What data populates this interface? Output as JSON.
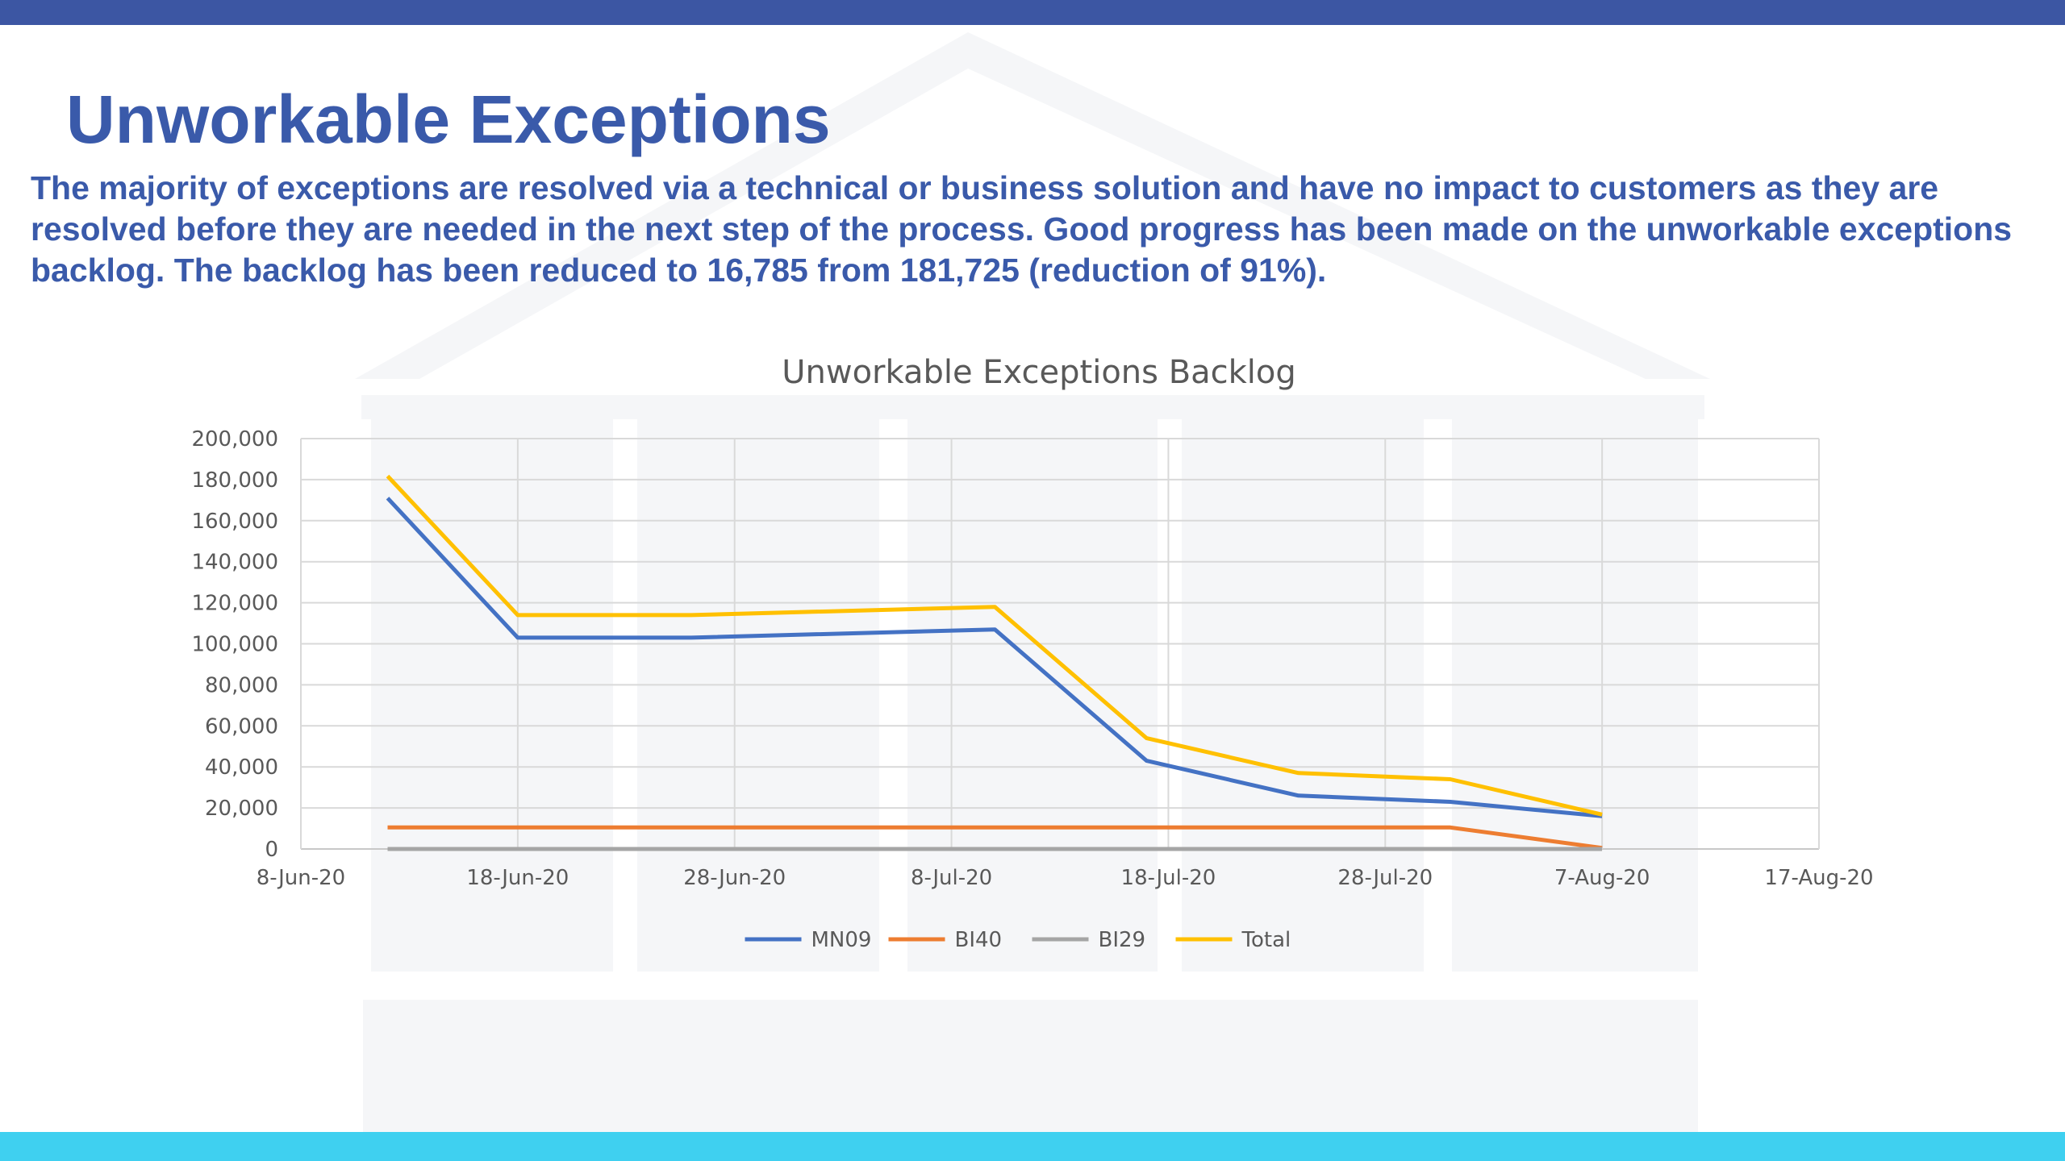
{
  "slide": {
    "title": "Unworkable Exceptions",
    "summary": "The majority of exceptions are resolved via a technical or business solution and have no impact to customers as they are resolved before they are needed in the next step of the process. Good progress has been made on the unworkable exceptions backlog. The backlog has been reduced to 16,785 from 181,725 (reduction of 91%).",
    "colors": {
      "title": "#3a5aaa",
      "top_bar": "#3c56a3",
      "bottom_bar": "#3fd0f0"
    }
  },
  "chart_data": {
    "type": "line",
    "title": "Unworkable Exceptions Backlog",
    "xlabel": "",
    "ylabel": "",
    "x_tick_labels": [
      "8-Jun-20",
      "18-Jun-20",
      "28-Jun-20",
      "8-Jul-20",
      "18-Jul-20",
      "28-Jul-20",
      "7-Aug-20",
      "17-Aug-20"
    ],
    "y_tick_labels": [
      "0",
      "20,000",
      "40,000",
      "60,000",
      "80,000",
      "100,000",
      "120,000",
      "140,000",
      "160,000",
      "180,000",
      "200,000"
    ],
    "xlim": [
      "2020-06-08",
      "2020-08-17"
    ],
    "ylim": [
      0,
      200000
    ],
    "x": [
      "2020-06-12",
      "2020-06-18",
      "2020-06-26",
      "2020-07-10",
      "2020-07-17",
      "2020-07-24",
      "2020-07-31",
      "2020-08-07"
    ],
    "series": [
      {
        "name": "MN09",
        "color": "#4472c4",
        "values": [
          171000,
          103000,
          103000,
          107000,
          43000,
          26000,
          23000,
          16000
        ]
      },
      {
        "name": "BI40",
        "color": "#ed7d31",
        "values": [
          10500,
          10500,
          10500,
          10500,
          10500,
          10500,
          10500,
          500
        ]
      },
      {
        "name": "BI29",
        "color": "#a5a5a5",
        "values": [
          0,
          0,
          0,
          0,
          0,
          0,
          0,
          0
        ]
      },
      {
        "name": "Total",
        "color": "#ffc000",
        "values": [
          181725,
          114000,
          114000,
          118000,
          54000,
          37000,
          34000,
          16785
        ]
      }
    ],
    "grid": true,
    "legend": "bottom"
  }
}
